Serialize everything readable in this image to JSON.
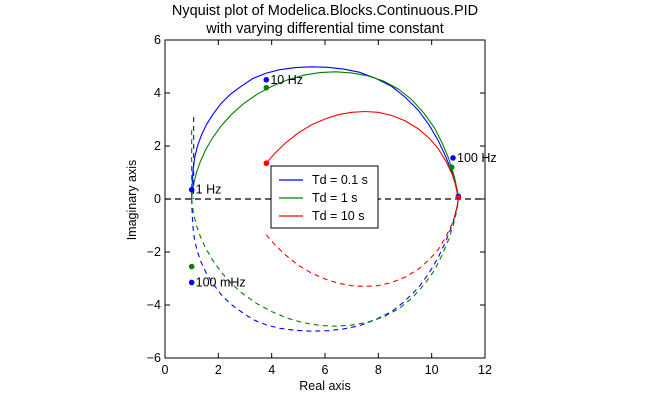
{
  "chart_data": {
    "type": "line",
    "title": "Nyquist plot of Modelica.Blocks.Continuous.PID",
    "subtitle": "with varying differential time constant",
    "xlabel": "Real axis",
    "ylabel": "Imaginary axis",
    "xlim": [
      0,
      12
    ],
    "ylim": [
      -6,
      6
    ],
    "xticks": [
      "0",
      "2",
      "4",
      "6",
      "8",
      "10",
      "12"
    ],
    "yticks": [
      "−6",
      "−4",
      "−2",
      "0",
      "2",
      "4",
      "6"
    ],
    "legend": {
      "position": "center"
    },
    "grid": false,
    "reference_line": {
      "y": 0,
      "style": "dashed",
      "color": "#000000"
    },
    "series": [
      {
        "name": "Td = 0.1 s",
        "color": "#0000ff",
        "x": [
          1.0,
          1.01,
          1.03,
          1.06,
          1.12,
          1.22,
          1.36,
          1.55,
          1.8,
          2.1,
          2.45,
          2.85,
          3.3,
          3.8,
          4.3,
          4.9,
          5.5,
          6.1,
          6.7,
          7.3,
          7.9,
          8.5,
          9.0,
          9.5,
          9.9,
          10.25,
          10.55,
          10.8,
          10.9,
          10.97,
          11.0
        ],
        "y": [
          0.0,
          0.3,
          0.8,
          1.2,
          1.6,
          2.0,
          2.4,
          2.8,
          3.2,
          3.6,
          3.95,
          4.25,
          4.55,
          4.75,
          4.88,
          4.96,
          4.99,
          4.97,
          4.9,
          4.78,
          4.55,
          4.25,
          3.85,
          3.35,
          2.8,
          2.2,
          1.55,
          0.9,
          0.5,
          0.2,
          0.0
        ],
        "markers": [
          {
            "x": 1.0,
            "y": -3.15,
            "label": "100 mHz"
          },
          {
            "x": 1.0,
            "y": 0.35,
            "label": "1 Hz"
          },
          {
            "x": 3.8,
            "y": 4.5,
            "label": "10 Hz"
          },
          {
            "x": 10.8,
            "y": 1.55,
            "label": "100 Hz"
          },
          {
            "x": 11.0,
            "y": 0.1,
            "label": ""
          }
        ]
      },
      {
        "name": "Td = 1 s",
        "color": "#008000",
        "x": [
          1.0,
          1.02,
          1.08,
          1.18,
          1.32,
          1.52,
          1.78,
          2.1,
          2.5,
          2.95,
          3.45,
          4.0,
          4.6,
          5.2,
          5.8,
          6.4,
          7.0,
          7.6,
          8.2,
          8.75,
          9.25,
          9.7,
          10.1,
          10.4,
          10.65,
          10.85,
          10.97,
          11.0
        ],
        "y": [
          0.0,
          0.2,
          0.6,
          1.0,
          1.4,
          1.85,
          2.3,
          2.75,
          3.2,
          3.6,
          3.95,
          4.25,
          4.5,
          4.67,
          4.77,
          4.8,
          4.76,
          4.65,
          4.45,
          4.15,
          3.75,
          3.25,
          2.7,
          2.1,
          1.5,
          0.85,
          0.3,
          0.0
        ],
        "markers": [
          {
            "x": 1.0,
            "y": -2.55,
            "label": ""
          },
          {
            "x": 3.8,
            "y": 4.2,
            "label": ""
          },
          {
            "x": 10.75,
            "y": 1.2,
            "label": ""
          }
        ]
      },
      {
        "name": "Td = 10 s",
        "color": "#ff0000",
        "x": [
          3.8,
          4.1,
          4.5,
          5.0,
          5.5,
          6.0,
          6.5,
          7.0,
          7.5,
          8.0,
          8.5,
          9.0,
          9.5,
          9.9,
          10.25,
          10.55,
          10.78,
          10.92,
          11.0
        ],
        "y": [
          1.35,
          1.7,
          2.1,
          2.5,
          2.8,
          3.02,
          3.18,
          3.27,
          3.3,
          3.27,
          3.15,
          2.95,
          2.65,
          2.3,
          1.9,
          1.4,
          0.9,
          0.45,
          0.0
        ],
        "markers": [
          {
            "x": 3.8,
            "y": 1.35,
            "label": ""
          },
          {
            "x": 11.0,
            "y": 0.05,
            "label": ""
          }
        ]
      }
    ]
  }
}
